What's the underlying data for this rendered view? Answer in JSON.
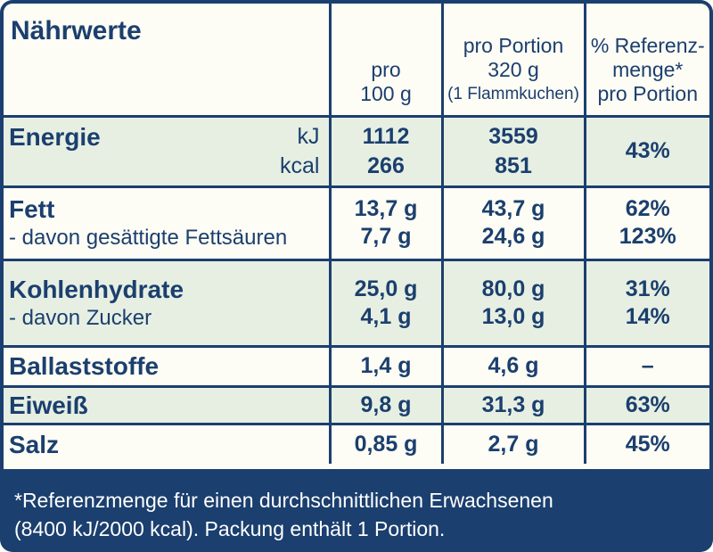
{
  "header": {
    "title": "Nährwerte",
    "col_100g": [
      "pro",
      "100 g"
    ],
    "col_portion": [
      "pro Portion",
      "320 g",
      "(1 Flammkuchen)"
    ],
    "col_ref": [
      "% Referenz-",
      "menge*",
      "pro Portion"
    ]
  },
  "energy": {
    "label": "Energie",
    "unit_kj": "kJ",
    "unit_kcal": "kcal",
    "per100_kj": "1112",
    "per100_kcal": "266",
    "portion_kj": "3559",
    "portion_kcal": "851",
    "ref": "43%"
  },
  "fat": {
    "label": "Fett",
    "sub_label": "- davon gesättigte Fettsäuren",
    "per100": "13,7 g",
    "per100_sub": "7,7 g",
    "portion": "43,7 g",
    "portion_sub": "24,6 g",
    "ref": "62%",
    "ref_sub": "123%"
  },
  "carbs": {
    "label": "Kohlenhydrate",
    "sub_label": "- davon Zucker",
    "per100": "25,0 g",
    "per100_sub": "4,1 g",
    "portion": "80,0 g",
    "portion_sub": "13,0 g",
    "ref": "31%",
    "ref_sub": "14%"
  },
  "fiber": {
    "label": "Ballaststoffe",
    "per100": "1,4 g",
    "portion": "4,6 g",
    "ref": "–"
  },
  "protein": {
    "label": "Eiweiß",
    "per100": "9,8 g",
    "portion": "31,3 g",
    "ref": "63%"
  },
  "salt": {
    "label": "Salz",
    "per100": "0,85 g",
    "portion": "2,7 g",
    "ref": "45%"
  },
  "footnote": {
    "line1": "*Referenzmenge für einen durchschnittlichen Erwachsenen",
    "line2": "(8400 kJ/2000 kcal). Packung enthält 1 Portion."
  },
  "colors": {
    "navy": "#1b3f6e",
    "cream": "#fdfcf5",
    "green_tint": "#e6efe2"
  }
}
